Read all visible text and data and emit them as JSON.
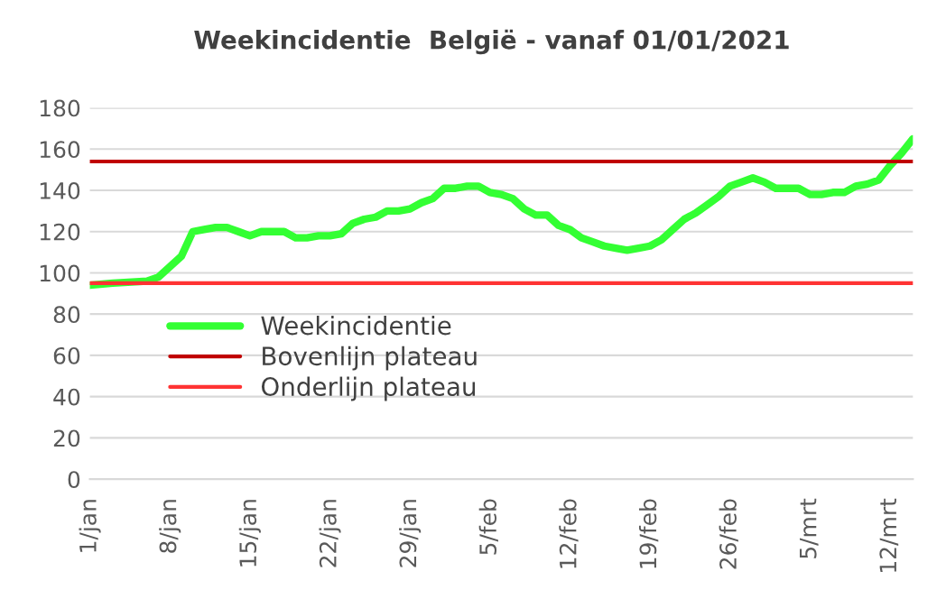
{
  "chart_data": {
    "type": "line",
    "title": "Weekincidentie  België - vanaf 01/01/2021",
    "series": [
      {
        "name": "Weekincidentie",
        "color": "#33ff33",
        "x": [
          "2021-01-01",
          "2021-01-03",
          "2021-01-06",
          "2021-01-07",
          "2021-01-08",
          "2021-01-09",
          "2021-01-10",
          "2021-01-11",
          "2021-01-12",
          "2021-01-13",
          "2021-01-14",
          "2021-01-15",
          "2021-01-16",
          "2021-01-17",
          "2021-01-18",
          "2021-01-19",
          "2021-01-20",
          "2021-01-21",
          "2021-01-22",
          "2021-01-23",
          "2021-01-24",
          "2021-01-25",
          "2021-01-26",
          "2021-01-27",
          "2021-01-28",
          "2021-01-29",
          "2021-01-30",
          "2021-01-31",
          "2021-02-01",
          "2021-02-02",
          "2021-02-03",
          "2021-02-04",
          "2021-02-05",
          "2021-02-06",
          "2021-02-07",
          "2021-02-08",
          "2021-02-09",
          "2021-02-10",
          "2021-02-11",
          "2021-02-12",
          "2021-02-13",
          "2021-02-14",
          "2021-02-15",
          "2021-02-16",
          "2021-02-17",
          "2021-02-18",
          "2021-02-19",
          "2021-02-20",
          "2021-02-21",
          "2021-02-22",
          "2021-02-23",
          "2021-02-24",
          "2021-02-25",
          "2021-02-26",
          "2021-02-27",
          "2021-02-28",
          "2021-03-01",
          "2021-03-02",
          "2021-03-03",
          "2021-03-04",
          "2021-03-05",
          "2021-03-06",
          "2021-03-07",
          "2021-03-08",
          "2021-03-09",
          "2021-03-10",
          "2021-03-11",
          "2021-03-12",
          "2021-03-13",
          "2021-03-14"
        ],
        "values": [
          94,
          95,
          96,
          98,
          103,
          108,
          120,
          121,
          122,
          122,
          120,
          118,
          120,
          120,
          120,
          117,
          117,
          118,
          118,
          119,
          124,
          126,
          127,
          130,
          130,
          131,
          134,
          136,
          141,
          141,
          142,
          142,
          139,
          138,
          136,
          131,
          128,
          128,
          123,
          121,
          117,
          115,
          113,
          112,
          111,
          112,
          113,
          116,
          121,
          126,
          129,
          133,
          137,
          142,
          144,
          146,
          144,
          141,
          141,
          141,
          138,
          138,
          139,
          139,
          142,
          143,
          145,
          152,
          158,
          165
        ]
      },
      {
        "name": "Bovenlijn plateau",
        "color": "#c00000",
        "x": [
          "2021-01-01",
          "2021-03-14"
        ],
        "values": [
          154,
          154
        ]
      },
      {
        "name": "Onderlijn plateau",
        "color": "#ff3333",
        "x": [
          "2021-01-01",
          "2021-03-14"
        ],
        "values": [
          95,
          95
        ]
      }
    ],
    "xlim": [
      "2021-01-01",
      "2021-03-14"
    ],
    "xticks": [
      {
        "value": "2021-01-01",
        "label": "1/jan"
      },
      {
        "value": "2021-01-08",
        "label": "8/jan"
      },
      {
        "value": "2021-01-15",
        "label": "15/jan"
      },
      {
        "value": "2021-01-22",
        "label": "22/jan"
      },
      {
        "value": "2021-01-29",
        "label": "29/jan"
      },
      {
        "value": "2021-02-05",
        "label": "5/feb"
      },
      {
        "value": "2021-02-12",
        "label": "12/feb"
      },
      {
        "value": "2021-02-19",
        "label": "19/feb"
      },
      {
        "value": "2021-02-26",
        "label": "26/feb"
      },
      {
        "value": "2021-03-05",
        "label": "5/mrt"
      },
      {
        "value": "2021-03-12",
        "label": "12/mrt"
      }
    ],
    "ylim": [
      0,
      180
    ],
    "yticks": [
      0,
      20,
      40,
      60,
      80,
      100,
      120,
      140,
      160,
      180
    ],
    "grid": "y",
    "legend": "bottom left",
    "marker": "none",
    "line_style": "solid"
  }
}
